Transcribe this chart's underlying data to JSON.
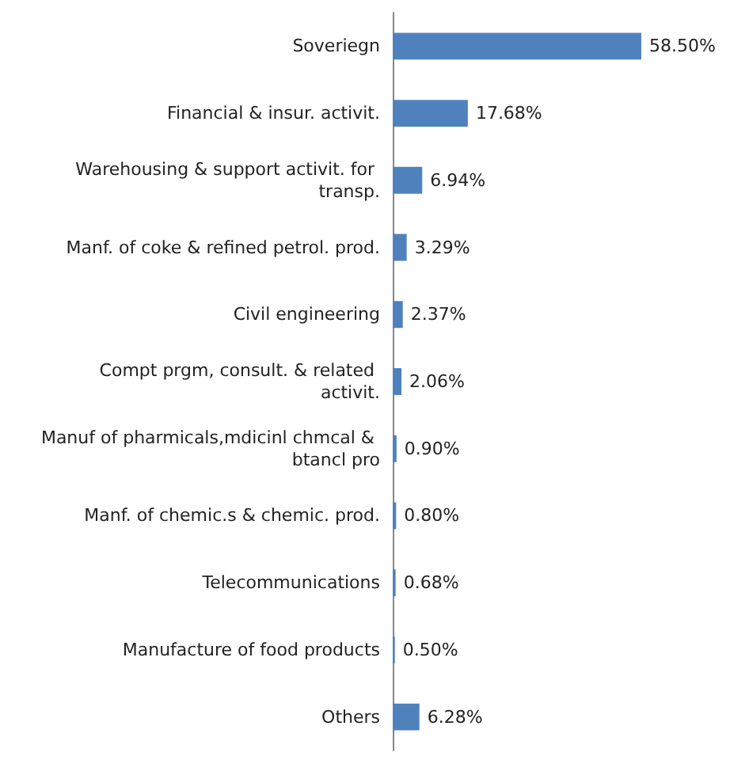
{
  "chart_data": {
    "type": "bar",
    "orientation": "horizontal",
    "categories": [
      "Soveriegn",
      "Financial & insur. activit.",
      "Warehousing & support activit. for transp.",
      "Manf. of coke & refined petrol. prod.",
      "Civil engineering",
      "Compt prgm, consult. & related activit.",
      "Manuf of pharmicals,mdicinl chmcal & btancl pro",
      "Manf. of chemic.s & chemic. prod.",
      "Telecommunications",
      "Manufacture of food products",
      "Others"
    ],
    "values": [
      58.5,
      17.68,
      6.94,
      3.29,
      2.37,
      2.06,
      0.9,
      0.8,
      0.68,
      0.5,
      6.28
    ],
    "value_labels": [
      "58.50%",
      "17.68%",
      "6.94%",
      "3.29%",
      "2.37%",
      "2.06%",
      "0.90%",
      "0.80%",
      "0.68%",
      "0.50%",
      "6.28%"
    ],
    "color": "#4f81bd"
  }
}
